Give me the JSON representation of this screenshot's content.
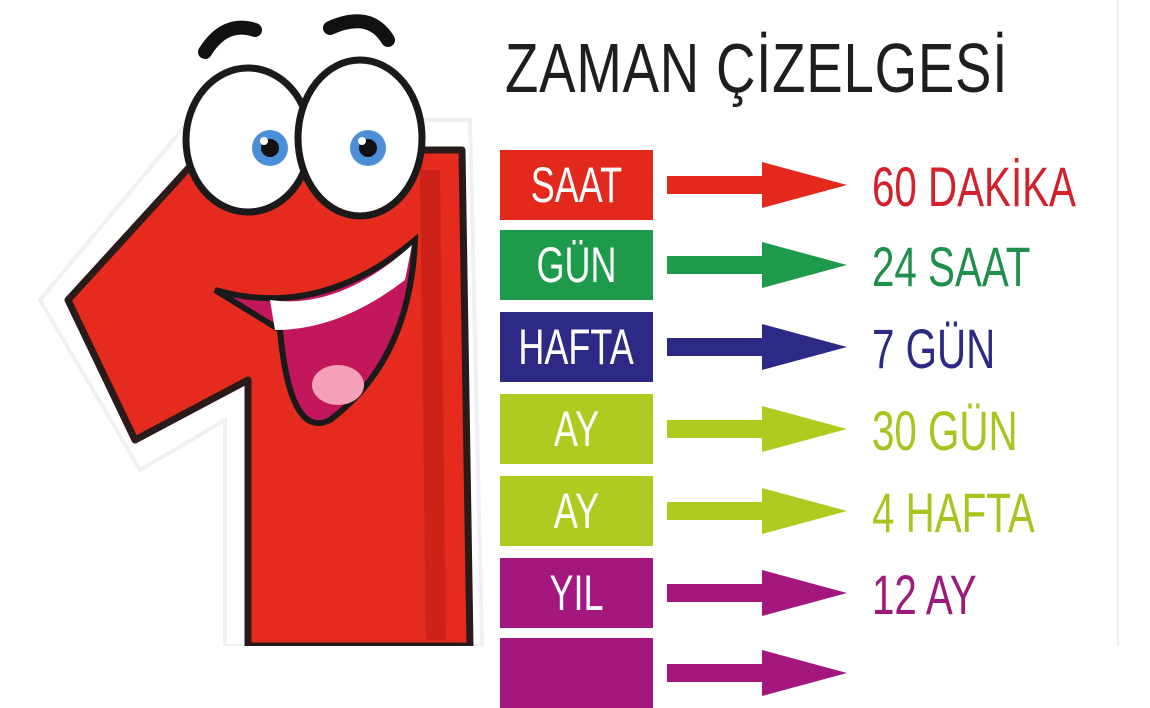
{
  "title": "ZAMAN ÇİZELGESİ",
  "rows": [
    {
      "unit": "SAAT",
      "equals": "60 DAKİKA",
      "color": "#e3281c",
      "text_color": "#d4202b"
    },
    {
      "unit": "GÜN",
      "equals": "24 SAAT",
      "color": "#1e9a4b",
      "text_color": "#1f8f4c"
    },
    {
      "unit": "HAFTA",
      "equals": "7 GÜN",
      "color": "#2d2a86",
      "text_color": "#2d2a86"
    },
    {
      "unit": "AY",
      "equals": "30 GÜN",
      "color": "#aecb1f",
      "text_color": "#a6c51e"
    },
    {
      "unit": "AY",
      "equals": "4 HAFTA",
      "color": "#aecb1f",
      "text_color": "#a6c51e"
    },
    {
      "unit": "YIL",
      "equals": "12 AY",
      "color": "#a3177f",
      "text_color": "#9c1a7c"
    },
    {
      "unit": "",
      "equals": "",
      "color": "#a3177f",
      "text_color": "#9c1a7c"
    }
  ],
  "character": {
    "icon": "number-one-mascot-icon",
    "color": "#e52a1e"
  }
}
